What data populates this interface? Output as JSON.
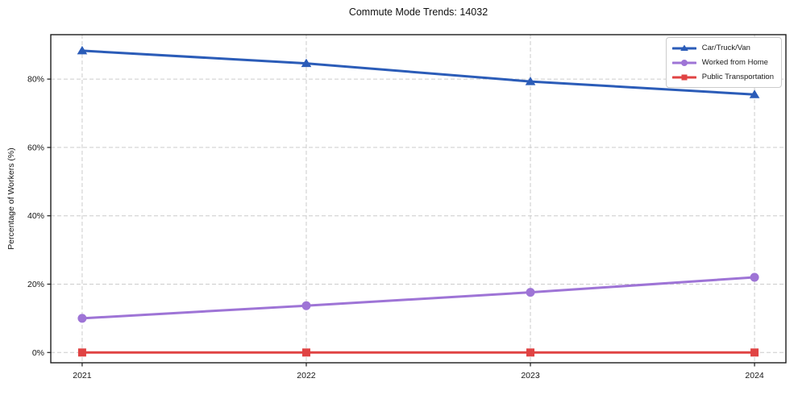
{
  "page": {
    "background": "#ffffff"
  },
  "chart_data": {
    "type": "line",
    "title": "Commute Mode Trends: 14032",
    "xlabel": "",
    "ylabel": "Percentage of Workers (%)",
    "x": [
      2021,
      2022,
      2023,
      2024
    ],
    "x_tick_labels": [
      "2021",
      "2022",
      "2023",
      "2024"
    ],
    "y_ticks": [
      0,
      20,
      40,
      60,
      80
    ],
    "y_tick_labels": [
      "0%",
      "20%",
      "40%",
      "60%",
      "80%"
    ],
    "xlim": [
      2020.86,
      2024.14
    ],
    "ylim": [
      -3,
      93
    ],
    "grid": true,
    "grid_style": "dashed",
    "legend_position": "upper right",
    "series": [
      {
        "name": "Car/Truck/Van",
        "color": "#2b5cb8",
        "marker": "triangle",
        "values": [
          88.3,
          84.6,
          79.3,
          75.5
        ]
      },
      {
        "name": "Worked from Home",
        "color": "#9e74d6",
        "marker": "circle",
        "values": [
          10.0,
          13.7,
          17.6,
          22.0
        ]
      },
      {
        "name": "Public Transportation",
        "color": "#e04343",
        "marker": "square",
        "values": [
          0.0,
          0.0,
          0.0,
          0.0
        ]
      }
    ],
    "style": {
      "grid_color": "#cccccc",
      "spine_color": "#1c1c1c",
      "tick_text_color": "#151515"
    }
  }
}
